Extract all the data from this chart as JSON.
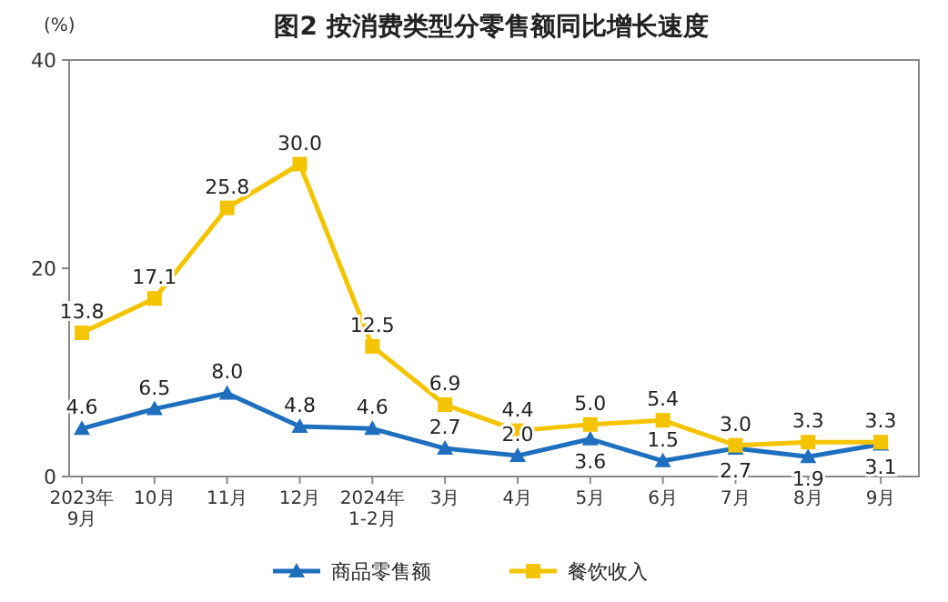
{
  "chart_data": {
    "type": "line",
    "title": "图2 按消费类型分零售额同比增长速度",
    "ylabel": "(%)",
    "categories": [
      "2023年\n9月",
      "10月",
      "11月",
      "12月",
      "2024年\n1-2月",
      "3月",
      "4月",
      "5月",
      "6月",
      "7月",
      "8月",
      "9月"
    ],
    "ylim": [
      0,
      40
    ],
    "yticks": [
      0,
      20,
      40
    ],
    "legend": "bottom",
    "grid": false,
    "series": [
      {
        "name": "商品零售额",
        "color": "#1f6fbf",
        "marker": "triangle",
        "values": [
          4.6,
          6.5,
          8.0,
          4.8,
          4.6,
          2.7,
          2.0,
          3.6,
          1.5,
          2.7,
          1.9,
          3.1
        ],
        "value_labels": [
          "4.6",
          "6.5",
          "8.0",
          "4.8",
          "4.6",
          "2.7",
          "2.0",
          "3.6",
          "1.5",
          "2.7",
          "1.9",
          "3.1"
        ]
      },
      {
        "name": "餐饮收入",
        "color": "#f5c400",
        "marker": "square",
        "values": [
          13.8,
          17.1,
          25.8,
          30.0,
          12.5,
          6.9,
          4.4,
          5.0,
          5.4,
          3.0,
          3.3,
          3.3
        ],
        "value_labels": [
          "13.8",
          "17.1",
          "25.8",
          "30.0",
          "12.5",
          "6.9",
          "4.4",
          "5.0",
          "5.4",
          "3.0",
          "3.3",
          "3.3"
        ]
      }
    ]
  }
}
